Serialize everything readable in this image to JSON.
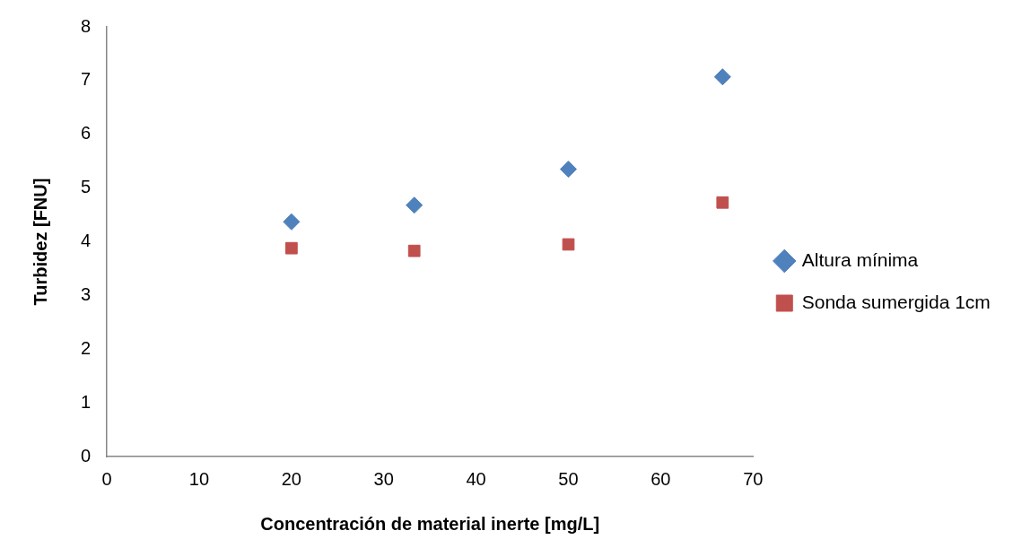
{
  "chart_data": {
    "type": "scatter",
    "xlabel": "Concentración de material inerte [mg/L]",
    "ylabel": "Turbidez [FNU]",
    "x": [
      20,
      33.3,
      50,
      66.7
    ],
    "series": [
      {
        "name": "Altura mínima",
        "color": "#4f81bd",
        "marker": "diamond",
        "values": [
          4.37,
          4.68,
          5.35,
          7.07
        ]
      },
      {
        "name": "Sonda sumergida 1cm",
        "color": "#c0504d",
        "marker": "square",
        "values": [
          3.88,
          3.83,
          3.95,
          4.73
        ]
      }
    ],
    "xlim": [
      0,
      70
    ],
    "xticks": [
      0,
      10,
      20,
      30,
      40,
      50,
      60,
      70
    ],
    "ylim": [
      0,
      8
    ],
    "yticks": [
      0,
      1,
      2,
      3,
      4,
      5,
      6,
      7,
      8
    ],
    "grid": false,
    "legend": "right"
  }
}
